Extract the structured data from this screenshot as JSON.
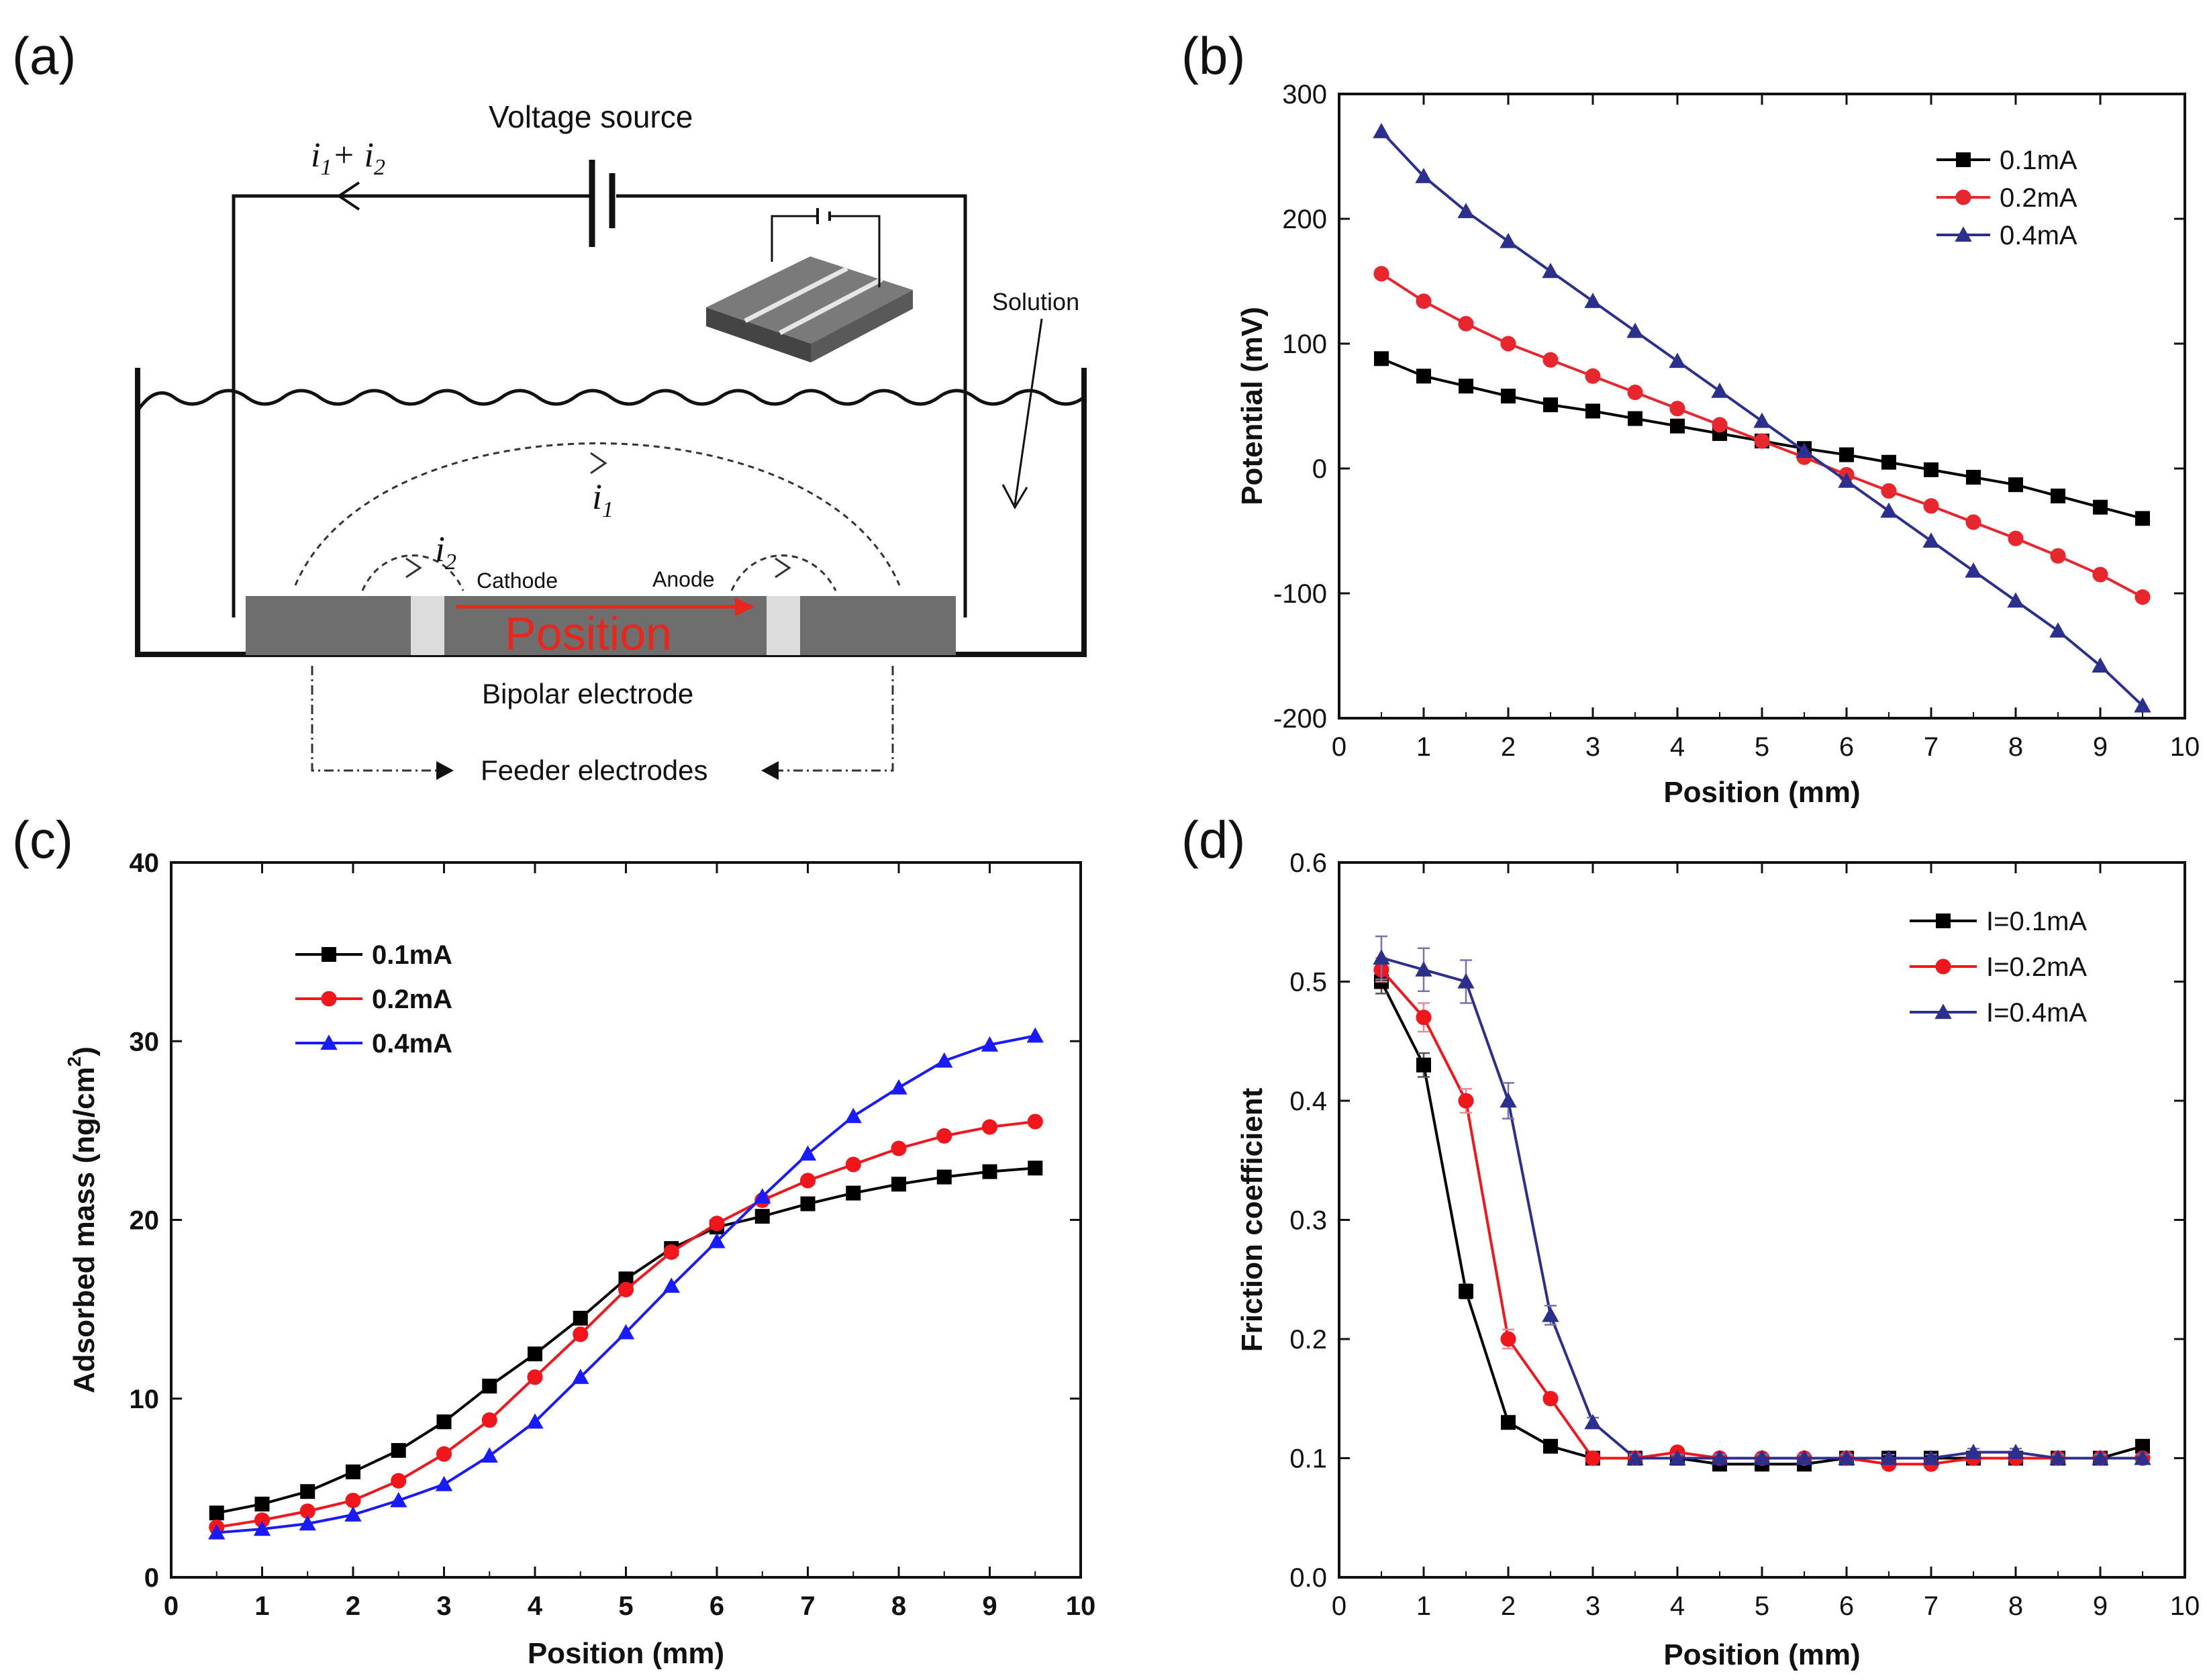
{
  "panels": {
    "a": {
      "label": "(a)",
      "voltage_source": "Voltage source",
      "current_total": "i",
      "current_total_sub1": "1",
      "current_plus": "+ i",
      "current_total_sub2": "2",
      "solution": "Solution",
      "i1": "i",
      "i1_sub": "1",
      "i2": "i",
      "i2_sub": "2",
      "cathode": "Cathode",
      "anode": "Anode",
      "position": "Position",
      "bipolar_electrode": "Bipolar electrode",
      "feeder_electrodes": "Feeder electrodes",
      "colors": {
        "electrode": "#6e6e6e",
        "gap": "#dcdcdc",
        "position": "#e8261b"
      }
    },
    "b": {
      "label": "(b)"
    },
    "c": {
      "label": "(c)"
    },
    "d": {
      "label": "(d)"
    }
  },
  "chart_data": [
    {
      "id": "b",
      "type": "line",
      "xlabel": "Position (mm)",
      "ylabel": "Potential (mV)",
      "xlim": [
        0,
        10
      ],
      "ylim": [
        -200,
        300
      ],
      "xticks": [
        "0",
        "1",
        "2",
        "3",
        "4",
        "5",
        "6",
        "7",
        "8",
        "9",
        "10"
      ],
      "yticks": [
        "-200",
        "-100",
        "0",
        "100",
        "200",
        "300"
      ],
      "legend_position": "top-right",
      "x": [
        0.5,
        1.0,
        1.5,
        2.0,
        2.5,
        3.0,
        3.5,
        4.0,
        4.5,
        5.0,
        5.5,
        6.0,
        6.5,
        7.0,
        7.5,
        8.0,
        8.5,
        9.0,
        9.5
      ],
      "series": [
        {
          "name": "0.1mA",
          "color": "#000000",
          "marker": "square",
          "values": [
            88,
            74,
            66,
            58,
            51,
            46,
            40,
            34,
            28,
            22,
            16,
            11,
            5,
            -1,
            -7,
            -13,
            -22,
            -31,
            -40
          ]
        },
        {
          "name": "0.2mA",
          "color": "#e8262d",
          "marker": "circle",
          "values": [
            156,
            134,
            116,
            100,
            87,
            74,
            61,
            48,
            35,
            22,
            9,
            -5,
            -18,
            -30,
            -43,
            -56,
            -70,
            -85,
            -103
          ]
        },
        {
          "name": "0.4mA",
          "color": "#2b2f8e",
          "marker": "triangle",
          "values": [
            270,
            234,
            206,
            182,
            158,
            134,
            110,
            86,
            62,
            38,
            14,
            -10,
            -34,
            -58,
            -82,
            -106,
            -130,
            -158,
            -190
          ]
        }
      ]
    },
    {
      "id": "c",
      "type": "line",
      "xlabel": "Position (mm)",
      "ylabel": "Adsorbed mass (ng/cm",
      "ylabel_sup": "2",
      "ylabel_end": ")",
      "xlim": [
        0,
        10
      ],
      "ylim": [
        0,
        40
      ],
      "xticks": [
        "0",
        "1",
        "2",
        "3",
        "4",
        "5",
        "6",
        "7",
        "8",
        "9",
        "10"
      ],
      "yticks": [
        "0",
        "10",
        "20",
        "30",
        "40"
      ],
      "legend_position": "top-left",
      "x": [
        0.5,
        1.0,
        1.5,
        2.0,
        2.5,
        3.0,
        3.5,
        4.0,
        4.5,
        5.0,
        5.5,
        6.0,
        6.5,
        7.0,
        7.5,
        8.0,
        8.5,
        9.0,
        9.5
      ],
      "series": [
        {
          "name": "0.1mA",
          "color": "#000000",
          "marker": "square",
          "values": [
            3.6,
            4.1,
            4.8,
            5.9,
            7.1,
            8.7,
            10.7,
            12.5,
            14.5,
            16.7,
            18.4,
            19.6,
            20.2,
            20.9,
            21.5,
            22.0,
            22.4,
            22.7,
            22.9
          ]
        },
        {
          "name": "0.2mA",
          "color": "#f0161c",
          "marker": "circle",
          "values": [
            2.8,
            3.2,
            3.7,
            4.3,
            5.4,
            6.9,
            8.8,
            11.2,
            13.6,
            16.1,
            18.2,
            19.8,
            21.1,
            22.2,
            23.1,
            24.0,
            24.7,
            25.2,
            25.5
          ]
        },
        {
          "name": "0.4mA",
          "color": "#1a1aff",
          "marker": "triangle",
          "values": [
            2.5,
            2.7,
            3.0,
            3.5,
            4.3,
            5.2,
            6.8,
            8.7,
            11.2,
            13.7,
            16.3,
            18.8,
            21.3,
            23.7,
            25.8,
            27.4,
            28.9,
            29.8,
            30.3
          ]
        }
      ]
    },
    {
      "id": "d",
      "type": "line",
      "xlabel": "Position (mm)",
      "ylabel": "Friction coefficient",
      "xlim": [
        0,
        10
      ],
      "ylim": [
        0,
        0.6
      ],
      "xticks": [
        "0",
        "1",
        "2",
        "3",
        "4",
        "5",
        "6",
        "7",
        "8",
        "9",
        "10"
      ],
      "yticks": [
        "0.0",
        "0.1",
        "0.2",
        "0.3",
        "0.4",
        "0.5",
        "0.6"
      ],
      "legend_position": "top-right",
      "x": [
        0.5,
        1.0,
        1.5,
        2.0,
        2.5,
        3.0,
        3.5,
        4.0,
        4.5,
        5.0,
        5.5,
        6.0,
        6.5,
        7.0,
        7.5,
        8.0,
        8.5,
        9.0,
        9.5
      ],
      "series": [
        {
          "name": "I=0.1mA",
          "color": "#000000",
          "marker": "square",
          "values": [
            0.5,
            0.43,
            0.24,
            0.13,
            0.11,
            0.1,
            0.1,
            0.1,
            0.095,
            0.095,
            0.095,
            0.1,
            0.1,
            0.1,
            0.1,
            0.1,
            0.1,
            0.1,
            0.11
          ],
          "errors": [
            0.01,
            0.01,
            0.006,
            0.003,
            0.003,
            0.003,
            0.003,
            0.003,
            0.003,
            0.003,
            0.003,
            0.003,
            0.003,
            0.003,
            0.003,
            0.003,
            0.003,
            0.003,
            0.003
          ]
        },
        {
          "name": "I=0.2mA",
          "color": "#f0161c",
          "marker": "circle",
          "values": [
            0.51,
            0.47,
            0.4,
            0.2,
            0.15,
            0.1,
            0.1,
            0.105,
            0.1,
            0.1,
            0.1,
            0.1,
            0.095,
            0.095,
            0.1,
            0.1,
            0.1,
            0.1,
            0.1
          ],
          "errors": [
            0.01,
            0.012,
            0.01,
            0.008,
            0.004,
            0.003,
            0.003,
            0.003,
            0.003,
            0.003,
            0.003,
            0.003,
            0.003,
            0.003,
            0.003,
            0.003,
            0.003,
            0.003,
            0.003
          ]
        },
        {
          "name": "I=0.4mA",
          "color": "#2b2f8e",
          "marker": "triangle",
          "values": [
            0.52,
            0.51,
            0.5,
            0.4,
            0.22,
            0.13,
            0.1,
            0.1,
            0.1,
            0.1,
            0.1,
            0.1,
            0.1,
            0.1,
            0.105,
            0.105,
            0.1,
            0.1,
            0.1
          ],
          "errors": [
            0.018,
            0.018,
            0.018,
            0.015,
            0.008,
            0.004,
            0.003,
            0.003,
            0.003,
            0.003,
            0.003,
            0.003,
            0.003,
            0.003,
            0.003,
            0.003,
            0.003,
            0.003,
            0.003
          ]
        }
      ]
    }
  ]
}
